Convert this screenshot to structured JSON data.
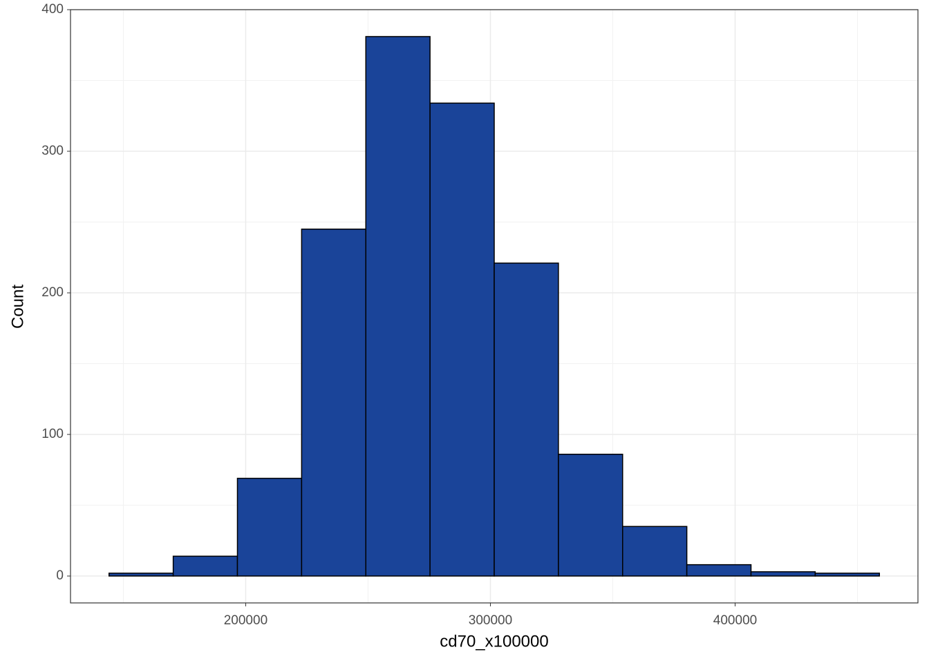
{
  "chart_data": {
    "type": "histogram",
    "x_label": "cd70_x100000",
    "y_label": "Count",
    "bins": [
      144150,
      170385,
      196620,
      222855,
      249090,
      275325,
      301560,
      327795,
      354030,
      380265,
      406500,
      432735,
      458970
    ],
    "values": [
      2,
      14,
      69,
      245,
      381,
      334,
      221,
      86,
      35,
      8,
      3,
      2
    ],
    "color": "#1a4499",
    "edge_color": "#000000",
    "xlim": [
      128409,
      474711
    ],
    "xticks": [
      200000,
      300000,
      400000
    ],
    "ylim": [
      -19,
      400
    ],
    "yticks": [
      0,
      100,
      200,
      300,
      400
    ],
    "grid": true
  }
}
